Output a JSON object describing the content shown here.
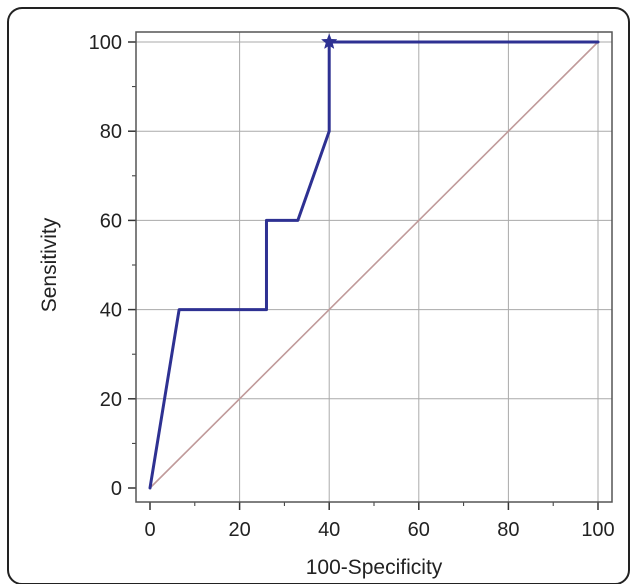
{
  "chart_data": {
    "type": "line",
    "xlabel": "100-Specificity",
    "ylabel": "Sensitivity",
    "xlim": [
      0,
      100
    ],
    "ylim": [
      0,
      100
    ],
    "xticks": [
      0,
      20,
      40,
      60,
      80,
      100
    ],
    "yticks": [
      0,
      20,
      40,
      60,
      80,
      100
    ],
    "x_tick_labels": [
      "0",
      "20",
      "40",
      "60",
      "80",
      "100"
    ],
    "y_tick_labels": [
      "0",
      "20",
      "40",
      "60",
      "80",
      "100"
    ],
    "grid": true,
    "series": [
      {
        "kind": "roc-curve",
        "color": "#2e3192",
        "x": [
          0,
          6.5,
          26,
          26,
          33,
          40,
          40,
          100
        ],
        "y": [
          0,
          40,
          40,
          60,
          60,
          80,
          100,
          100
        ]
      },
      {
        "kind": "reference-diagonal",
        "color": "#c09a9a",
        "x": [
          0,
          100
        ],
        "y": [
          0,
          100
        ]
      }
    ],
    "marker": {
      "symbol": "star",
      "color": "#2e3192",
      "x": 40,
      "y": 100
    }
  }
}
